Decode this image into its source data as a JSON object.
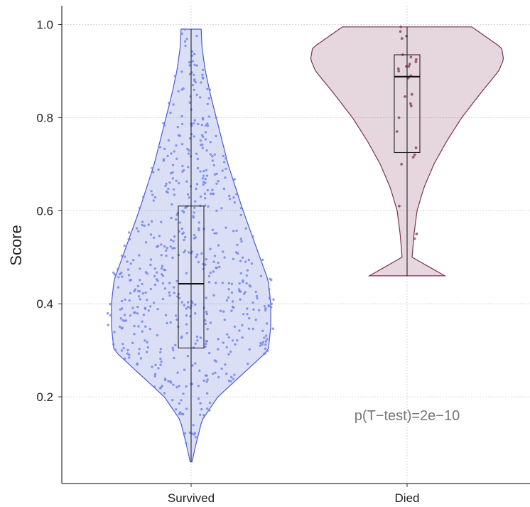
{
  "chart_data": {
    "type": "violin",
    "ylabel": "Score",
    "xlabel": "",
    "ylim": [
      0.0,
      1.04
    ],
    "yticks": [
      0.2,
      0.4,
      0.6,
      0.8,
      1.0
    ],
    "ytick_labels": [
      "0.2",
      "0.4",
      "0.6",
      "0.8",
      "1.0"
    ],
    "grid": true,
    "categories": [
      "Survived",
      "Died"
    ],
    "annotation": "p(T−test)=2e−10",
    "series": [
      {
        "category": "Survived",
        "fill_color": "#5b6fd6",
        "edge_color": "#4a5bd0",
        "point_color": "#6f82e6",
        "min": 0.06,
        "max": 0.99,
        "q1": 0.305,
        "median": 0.443,
        "q3": 0.61,
        "density": [
          [
            0.06,
            0.01
          ],
          [
            0.1,
            0.06
          ],
          [
            0.15,
            0.13
          ],
          [
            0.2,
            0.32
          ],
          [
            0.25,
            0.62
          ],
          [
            0.3,
            0.92
          ],
          [
            0.35,
            0.95
          ],
          [
            0.4,
            0.95
          ],
          [
            0.45,
            0.92
          ],
          [
            0.5,
            0.82
          ],
          [
            0.55,
            0.72
          ],
          [
            0.6,
            0.62
          ],
          [
            0.65,
            0.53
          ],
          [
            0.7,
            0.44
          ],
          [
            0.75,
            0.37
          ],
          [
            0.8,
            0.3
          ],
          [
            0.85,
            0.23
          ],
          [
            0.9,
            0.17
          ],
          [
            0.95,
            0.13
          ],
          [
            0.99,
            0.12
          ]
        ],
        "n_points": 620
      },
      {
        "category": "Died",
        "fill_color": "#8a4a63",
        "edge_color": "#7a3450",
        "point_color": "#8a4a63",
        "min": 0.46,
        "max": 0.995,
        "q1": 0.725,
        "median": 0.888,
        "q3": 0.935,
        "density": [
          [
            0.46,
            0.38
          ],
          [
            0.5,
            0.05
          ],
          [
            0.55,
            0.07
          ],
          [
            0.6,
            0.1
          ],
          [
            0.65,
            0.17
          ],
          [
            0.7,
            0.27
          ],
          [
            0.75,
            0.4
          ],
          [
            0.8,
            0.55
          ],
          [
            0.85,
            0.73
          ],
          [
            0.9,
            0.92
          ],
          [
            0.925,
            0.97
          ],
          [
            0.95,
            0.95
          ],
          [
            0.98,
            0.75
          ],
          [
            0.995,
            0.65
          ]
        ],
        "points": [
          0.995,
          0.985,
          0.975,
          0.97,
          0.935,
          0.93,
          0.925,
          0.92,
          0.915,
          0.91,
          0.91,
          0.905,
          0.9,
          0.89,
          0.885,
          0.85,
          0.845,
          0.83,
          0.825,
          0.8,
          0.77,
          0.735,
          0.72,
          0.715,
          0.7,
          0.61,
          0.55,
          0.54
        ]
      }
    ]
  }
}
